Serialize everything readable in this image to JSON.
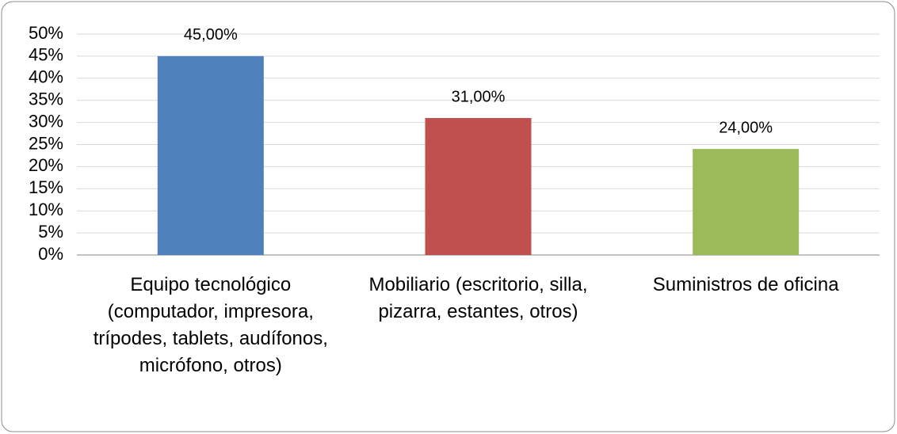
{
  "chart_data": {
    "type": "bar",
    "categories": [
      "Equipo tecnológico (computador, impresora, trípodes, tablets, audífonos, micrófono, otros)",
      "Mobiliario (escritorio, silla, pizarra, estantes, otros)",
      "Suministros de oficina"
    ],
    "values": [
      45,
      31,
      24
    ],
    "value_labels": [
      "45,00%",
      "31,00%",
      "24,00%"
    ],
    "colors": [
      "#4f81bd",
      "#c0504d",
      "#9bbb59"
    ],
    "ylim": [
      0,
      50
    ],
    "yticks": [
      {
        "value": 0,
        "label": "0%"
      },
      {
        "value": 5,
        "label": "5%"
      },
      {
        "value": 10,
        "label": "10%"
      },
      {
        "value": 15,
        "label": "15%"
      },
      {
        "value": 20,
        "label": "20%"
      },
      {
        "value": 25,
        "label": "25%"
      },
      {
        "value": 30,
        "label": "30%"
      },
      {
        "value": 35,
        "label": "35%"
      },
      {
        "value": 40,
        "label": "40%"
      },
      {
        "value": 45,
        "label": "45%"
      },
      {
        "value": 50,
        "label": "50%"
      }
    ],
    "grid": true
  }
}
